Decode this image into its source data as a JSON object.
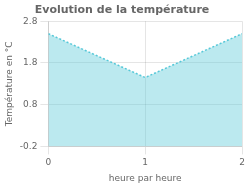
{
  "chart_data": {
    "type": "area",
    "title": "Evolution de la température",
    "xlabel": "heure par heure",
    "ylabel": "Température en °C",
    "x": [
      0,
      1,
      2
    ],
    "values": [
      2.5,
      1.45,
      2.5
    ],
    "color": "#56c8d8",
    "line_style": "dotted",
    "xlim": [
      0,
      2
    ],
    "ylim": [
      -0.2,
      2.8
    ],
    "xticks": [
      0,
      1,
      2
    ],
    "yticks": [
      -0.2,
      0.8,
      1.8,
      2.8
    ],
    "grid": true
  }
}
